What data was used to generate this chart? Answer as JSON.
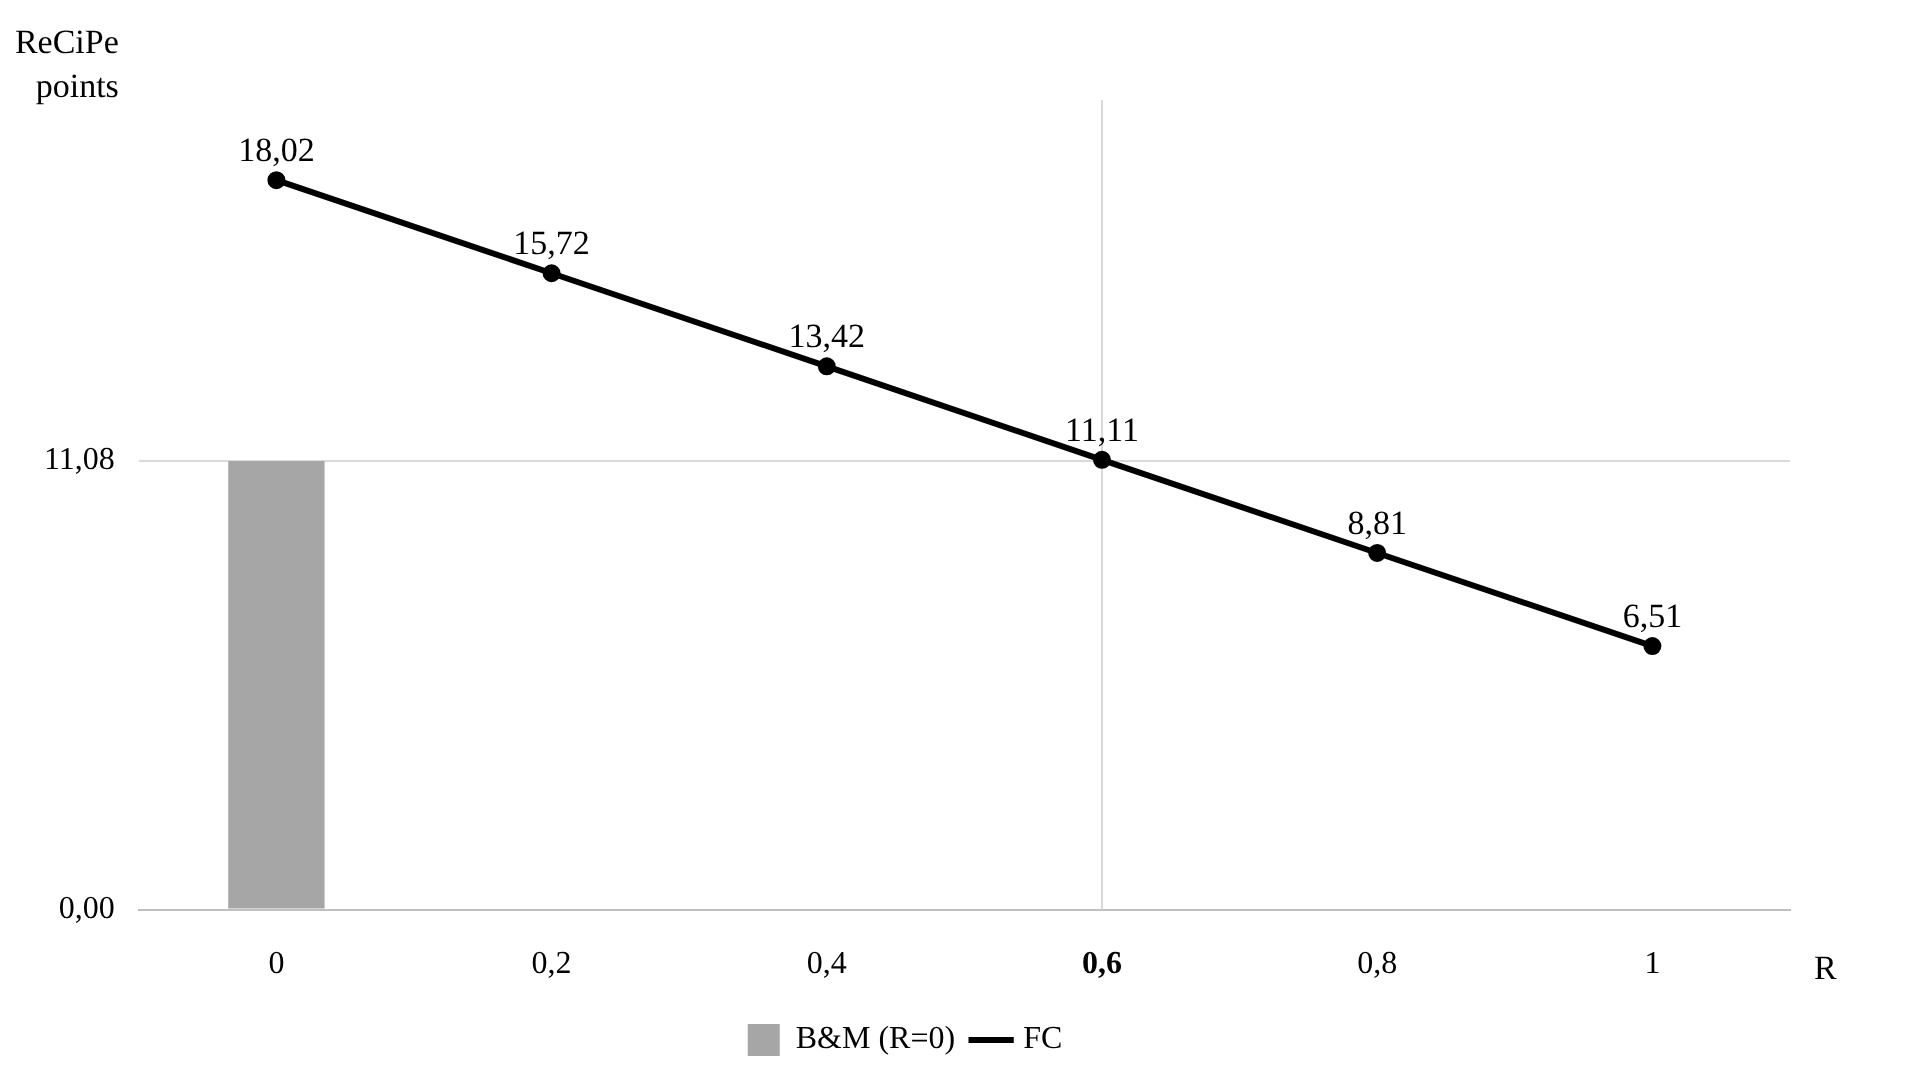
{
  "chart_data": {
    "type": "bar",
    "ylabel": "ReCiPe points",
    "xlabel": "R",
    "categories": [
      "0",
      "0,2",
      "0,4",
      "0,6",
      "0,8",
      "1"
    ],
    "series": [
      {
        "name": "B&M (R=0)",
        "color": "#a6a6a6",
        "values": [
          11.08,
          null,
          null,
          null,
          null,
          null
        ]
      },
      {
        "name": "FC",
        "type": "line",
        "color": "#000000",
        "marker": "circle",
        "values": [
          18.02,
          15.72,
          13.42,
          11.11,
          8.81,
          6.51
        ],
        "value_labels": [
          "18,02",
          "15,72",
          "13,42",
          "11,11",
          "8,81",
          "6,51"
        ]
      }
    ],
    "ylim": [
      0,
      20
    ],
    "yticks": [
      {
        "value": 0,
        "label": "0,00"
      },
      {
        "value": 11.08,
        "label": "11,08"
      }
    ],
    "grid": "y",
    "legend": "bottom",
    "ref_lines": [
      {
        "axis": "x",
        "value": "0,6",
        "color": "#d9d9d9"
      }
    ]
  }
}
